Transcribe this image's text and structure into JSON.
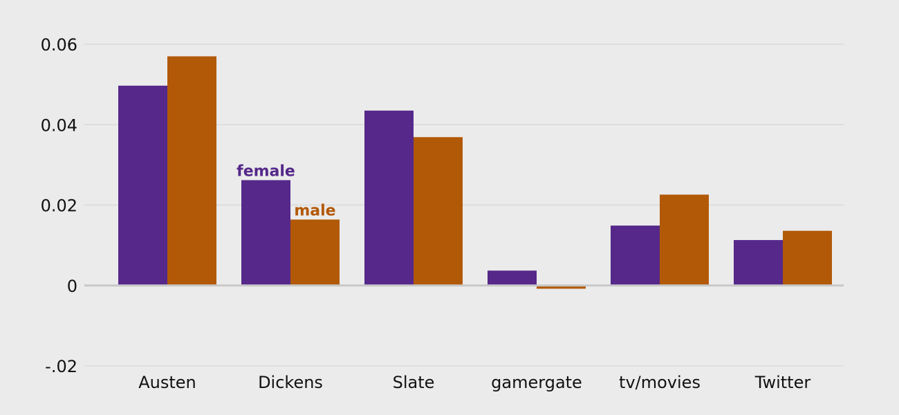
{
  "chart_data": {
    "type": "bar",
    "title": "",
    "xlabel": "",
    "ylabel": "",
    "categories": [
      "Austen",
      "Dickens",
      "Slate",
      "gamergate",
      "tv/movies",
      "Twitter"
    ],
    "series": [
      {
        "name": "female",
        "color": "#55288a",
        "values": [
          0.0497,
          0.0262,
          0.0435,
          0.0037,
          0.0149,
          0.0113
        ]
      },
      {
        "name": "male",
        "color": "#b25907",
        "values": [
          0.057,
          0.0164,
          0.0369,
          -0.0008,
          0.0226,
          0.0136
        ]
      }
    ],
    "ylim": [
      -0.02,
      0.06
    ],
    "yticks": [
      {
        "value": 0.06,
        "label": "0.06"
      },
      {
        "value": 0.04,
        "label": "0.04"
      },
      {
        "value": 0.02,
        "label": "0.02"
      },
      {
        "value": 0,
        "label": "0"
      },
      {
        "value": -0.02,
        "label": "-.02"
      }
    ],
    "grid": true,
    "series_labels_on_category": "Dickens",
    "background_color": "#ebebeb",
    "grid_color": "#d9d9d9",
    "zero_line_color": "#c8c8c8"
  }
}
